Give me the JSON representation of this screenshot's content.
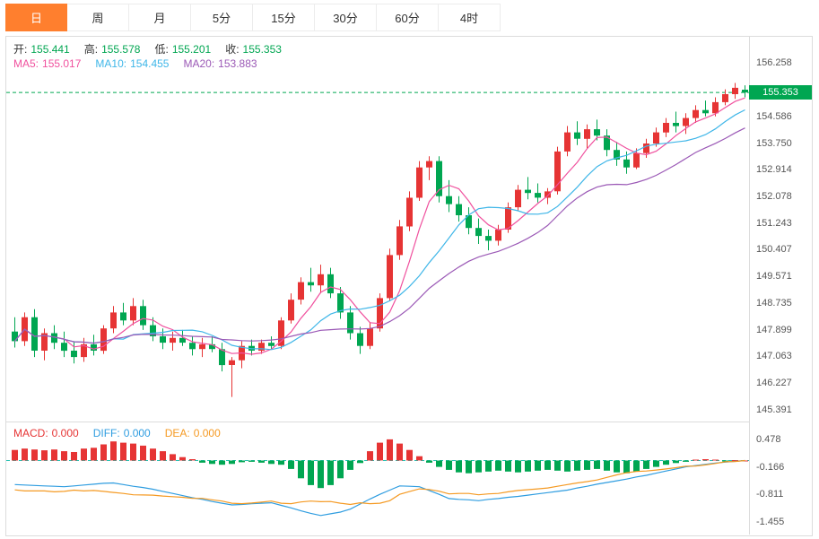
{
  "tabs": [
    {
      "label": "日",
      "active": true
    },
    {
      "label": "周",
      "active": false
    },
    {
      "label": "月",
      "active": false
    },
    {
      "label": "5分",
      "active": false
    },
    {
      "label": "15分",
      "active": false
    },
    {
      "label": "30分",
      "active": false
    },
    {
      "label": "60分",
      "active": false
    },
    {
      "label": "4时",
      "active": false
    }
  ],
  "legend": {
    "open_label": "开:",
    "open": "155.441",
    "high_label": "高:",
    "high": "155.578",
    "low_label": "低:",
    "low": "155.201",
    "close_label": "收:",
    "close": "155.353",
    "ma5_label": "MA5:",
    "ma5": "155.017",
    "ma10_label": "MA10:",
    "ma10": "154.455",
    "ma20_label": "MA20:",
    "ma20": "153.883"
  },
  "macd_legend": {
    "macd_label": "MACD:",
    "macd": "0.000",
    "diff_label": "DIFF:",
    "diff": "0.000",
    "dea_label": "DEA:",
    "dea": "0.000"
  },
  "price_tag": "155.353",
  "colors": {
    "accent": "#ff7f2e",
    "up": "#e63434",
    "down": "#00a651",
    "ma5": "#f0519e",
    "ma10": "#3fb6e8",
    "ma20": "#9b59b6",
    "diff": "#2f9de0",
    "dea": "#f59a23",
    "zero_line": "#25c0b2",
    "border": "#dcdcdc",
    "axis_text": "#555555",
    "price_tag_bg": "#00a651"
  },
  "chart_data": {
    "type": "candlestick",
    "title": "Daily candlestick chart with MA5/MA10/MA20 and MACD sub-chart",
    "main": {
      "price_min": 145.0,
      "price_max": 157.1,
      "last_close": 155.353,
      "ma_periods": [
        5,
        10,
        20
      ],
      "y_ticks": [
        "156.258",
        "154.586",
        "153.750",
        "152.914",
        "152.078",
        "151.243",
        "150.407",
        "149.571",
        "148.735",
        "147.899",
        "147.063",
        "146.227",
        "145.391"
      ],
      "candles": [
        [
          147.85,
          148.3,
          147.35,
          147.55
        ],
        [
          147.55,
          148.45,
          147.4,
          148.3
        ],
        [
          148.3,
          148.55,
          147.05,
          147.25
        ],
        [
          147.25,
          147.95,
          146.95,
          147.8
        ],
        [
          147.8,
          148.05,
          147.3,
          147.5
        ],
        [
          147.5,
          147.85,
          147.05,
          147.25
        ],
        [
          147.25,
          147.55,
          146.85,
          147.05
        ],
        [
          147.05,
          147.65,
          146.9,
          147.45
        ],
        [
          147.45,
          147.75,
          147.1,
          147.25
        ],
        [
          147.25,
          148.05,
          147.15,
          147.95
        ],
        [
          147.95,
          148.65,
          147.8,
          148.45
        ],
        [
          148.45,
          148.75,
          148.05,
          148.2
        ],
        [
          148.2,
          148.9,
          148.05,
          148.65
        ],
        [
          148.65,
          148.85,
          147.9,
          148.05
        ],
        [
          148.05,
          148.3,
          147.55,
          147.7
        ],
        [
          147.7,
          147.95,
          147.3,
          147.5
        ],
        [
          147.5,
          147.85,
          147.25,
          147.65
        ],
        [
          147.65,
          147.9,
          147.4,
          147.5
        ],
        [
          147.5,
          147.7,
          147.1,
          147.3
        ],
        [
          147.3,
          147.65,
          147.05,
          147.45
        ],
        [
          147.45,
          147.7,
          147.2,
          147.3
        ],
        [
          147.3,
          147.5,
          146.6,
          146.8
        ],
        [
          146.8,
          147.05,
          145.8,
          146.95
        ],
        [
          146.95,
          147.55,
          146.7,
          147.4
        ],
        [
          147.4,
          147.6,
          147.1,
          147.25
        ],
        [
          147.25,
          147.6,
          147.15,
          147.5
        ],
        [
          147.5,
          147.7,
          147.3,
          147.4
        ],
        [
          147.4,
          148.3,
          147.3,
          148.2
        ],
        [
          148.2,
          149.05,
          148.1,
          148.85
        ],
        [
          148.85,
          149.55,
          148.7,
          149.4
        ],
        [
          149.4,
          149.85,
          149.1,
          149.3
        ],
        [
          149.3,
          149.95,
          149.05,
          149.65
        ],
        [
          149.65,
          149.85,
          148.9,
          149.05
        ],
        [
          149.05,
          149.25,
          148.25,
          148.45
        ],
        [
          148.45,
          148.65,
          147.6,
          147.8
        ],
        [
          147.8,
          148.0,
          147.15,
          147.4
        ],
        [
          147.4,
          148.15,
          147.3,
          147.95
        ],
        [
          147.95,
          149.05,
          147.85,
          148.9
        ],
        [
          148.9,
          150.45,
          148.8,
          150.25
        ],
        [
          150.25,
          151.35,
          150.1,
          151.15
        ],
        [
          151.15,
          152.25,
          151.0,
          152.05
        ],
        [
          152.05,
          153.2,
          151.95,
          153.0
        ],
        [
          153.0,
          153.35,
          152.6,
          153.2
        ],
        [
          153.2,
          153.35,
          151.9,
          152.1
        ],
        [
          152.1,
          152.6,
          151.6,
          151.85
        ],
        [
          151.85,
          152.1,
          151.3,
          151.5
        ],
        [
          151.5,
          151.75,
          150.9,
          151.1
        ],
        [
          151.1,
          151.4,
          150.6,
          150.85
        ],
        [
          150.85,
          151.05,
          150.4,
          150.7
        ],
        [
          150.7,
          151.2,
          150.55,
          151.05
        ],
        [
          151.05,
          151.9,
          150.95,
          151.75
        ],
        [
          151.75,
          152.45,
          151.65,
          152.3
        ],
        [
          152.3,
          152.7,
          152.0,
          152.2
        ],
        [
          152.2,
          152.5,
          151.9,
          152.05
        ],
        [
          152.05,
          152.35,
          151.85,
          152.25
        ],
        [
          152.25,
          153.65,
          152.15,
          153.5
        ],
        [
          153.5,
          154.3,
          153.35,
          154.1
        ],
        [
          154.1,
          154.45,
          153.7,
          153.9
        ],
        [
          153.9,
          154.35,
          153.6,
          154.2
        ],
        [
          154.2,
          154.5,
          153.85,
          154.0
        ],
        [
          154.0,
          154.2,
          153.35,
          153.55
        ],
        [
          153.55,
          153.8,
          153.05,
          153.25
        ],
        [
          153.25,
          153.5,
          152.8,
          153.0
        ],
        [
          153.0,
          153.6,
          152.95,
          153.45
        ],
        [
          153.45,
          153.9,
          153.3,
          153.75
        ],
        [
          153.75,
          154.25,
          153.65,
          154.1
        ],
        [
          154.1,
          154.55,
          153.95,
          154.4
        ],
        [
          154.4,
          154.75,
          154.1,
          154.3
        ],
        [
          154.3,
          154.7,
          154.05,
          154.55
        ],
        [
          154.55,
          154.95,
          154.4,
          154.8
        ],
        [
          154.8,
          155.1,
          154.6,
          154.7
        ],
        [
          154.7,
          155.2,
          154.6,
          155.05
        ],
        [
          155.05,
          155.45,
          154.95,
          155.3
        ],
        [
          155.3,
          155.65,
          155.15,
          155.5
        ],
        [
          155.441,
          155.578,
          155.201,
          155.353
        ]
      ]
    },
    "macd": {
      "v_min": -1.75,
      "v_max": 0.9,
      "y_ticks": [
        "0.478",
        "-0.166",
        "-0.811",
        "-1.455"
      ],
      "hist": [
        0.25,
        0.28,
        0.26,
        0.24,
        0.26,
        0.22,
        0.2,
        0.28,
        0.3,
        0.38,
        0.45,
        0.42,
        0.4,
        0.35,
        0.28,
        0.22,
        0.15,
        0.08,
        0.03,
        -0.05,
        -0.08,
        -0.1,
        -0.08,
        -0.04,
        -0.03,
        -0.05,
        -0.08,
        -0.1,
        -0.2,
        -0.42,
        -0.58,
        -0.65,
        -0.58,
        -0.42,
        -0.22,
        -0.06,
        0.22,
        0.42,
        0.5,
        0.4,
        0.25,
        0.1,
        -0.05,
        -0.15,
        -0.22,
        -0.28,
        -0.3,
        -0.28,
        -0.26,
        -0.24,
        -0.26,
        -0.28,
        -0.26,
        -0.24,
        -0.22,
        -0.24,
        -0.26,
        -0.24,
        -0.22,
        -0.2,
        -0.24,
        -0.28,
        -0.3,
        -0.26,
        -0.2,
        -0.15,
        -0.1,
        -0.06,
        -0.03,
        0.02,
        0.03,
        0.02,
        -0.02,
        0.01,
        0.0
      ],
      "diff": [
        -0.57,
        -0.58,
        -0.59,
        -0.6,
        -0.61,
        -0.62,
        -0.6,
        -0.58,
        -0.56,
        -0.54,
        -0.53,
        -0.57,
        -0.61,
        -0.64,
        -0.68,
        -0.73,
        -0.78,
        -0.83,
        -0.88,
        -0.92,
        -0.97,
        -1.01,
        -1.05,
        -1.04,
        -1.02,
        -1.01,
        -1.0,
        -1.06,
        -1.12,
        -1.19,
        -1.25,
        -1.3,
        -1.26,
        -1.22,
        -1.15,
        -1.03,
        -0.91,
        -0.8,
        -0.7,
        -0.6,
        -0.61,
        -0.62,
        -0.71,
        -0.8,
        -0.9,
        -0.92,
        -0.93,
        -0.95,
        -0.92,
        -0.9,
        -0.87,
        -0.85,
        -0.82,
        -0.79,
        -0.76,
        -0.73,
        -0.7,
        -0.65,
        -0.61,
        -0.56,
        -0.52,
        -0.48,
        -0.44,
        -0.39,
        -0.35,
        -0.3,
        -0.25,
        -0.2,
        -0.15,
        -0.12,
        -0.09,
        -0.06,
        -0.04,
        -0.02,
        0.0
      ]
    }
  }
}
